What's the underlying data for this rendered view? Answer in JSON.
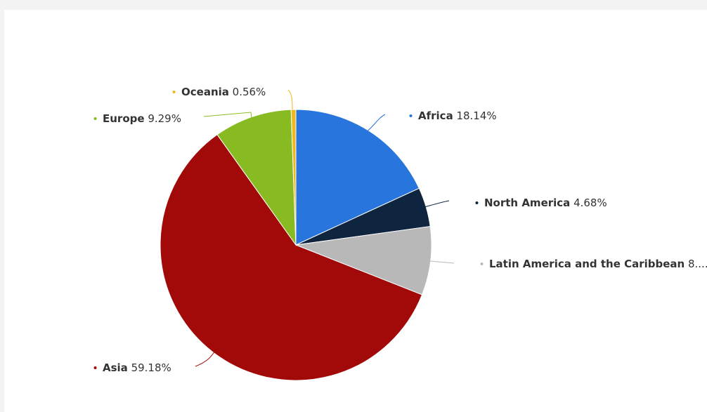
{
  "chart_data": {
    "type": "pie",
    "title": "",
    "slices": [
      {
        "name": "Africa",
        "value": 18.14,
        "label_value": "18.14%",
        "color": "#2876dd"
      },
      {
        "name": "North America",
        "value": 4.68,
        "label_value": "4.68%",
        "color": "#0f243e"
      },
      {
        "name": "Latin America and the Caribbean",
        "value": 8.18,
        "label_value": "8....",
        "color": "#b8b8b8"
      },
      {
        "name": "Asia",
        "value": 59.18,
        "label_value": "59.18%",
        "color": "#a20a0a"
      },
      {
        "name": "Europe",
        "value": 9.29,
        "label_value": "9.29%",
        "color": "#88bb22"
      },
      {
        "name": "Oceania",
        "value": 0.56,
        "label_value": "0.56%",
        "color": "#f2b51c"
      }
    ]
  }
}
